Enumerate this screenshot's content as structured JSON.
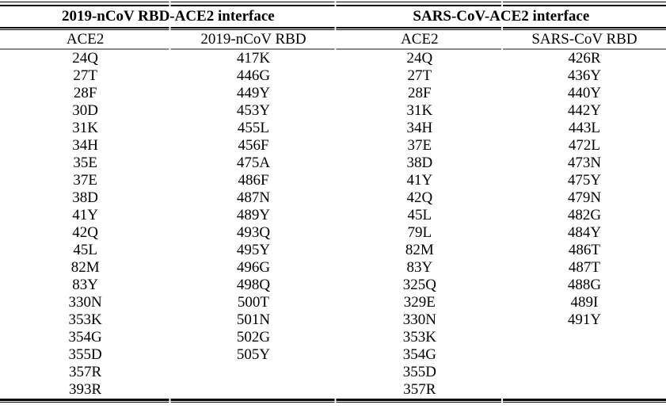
{
  "table": {
    "groups": [
      {
        "title": "2019-nCoV RBD-ACE2 interface",
        "columns": [
          "ACE2",
          "2019-nCoV RBD"
        ]
      },
      {
        "title": "SARS-CoV-ACE2 interface",
        "columns": [
          "ACE2",
          "SARS-CoV RBD"
        ]
      }
    ],
    "rows": [
      [
        "24Q",
        "417K",
        "24Q",
        "426R"
      ],
      [
        "27T",
        "446G",
        "27T",
        "436Y"
      ],
      [
        "28F",
        "449Y",
        "28F",
        "440Y"
      ],
      [
        "30D",
        "453Y",
        "31K",
        "442Y"
      ],
      [
        "31K",
        "455L",
        "34H",
        "443L"
      ],
      [
        "34H",
        "456F",
        "37E",
        "472L"
      ],
      [
        "35E",
        "475A",
        "38D",
        "473N"
      ],
      [
        "37E",
        "486F",
        "41Y",
        "475Y"
      ],
      [
        "38D",
        "487N",
        "42Q",
        "479N"
      ],
      [
        "41Y",
        "489Y",
        "45L",
        "482G"
      ],
      [
        "42Q",
        "493Q",
        "79L",
        "484Y"
      ],
      [
        "45L",
        "495Y",
        "82M",
        "486T"
      ],
      [
        "82M",
        "496G",
        "83Y",
        "487T"
      ],
      [
        "83Y",
        "498Q",
        "325Q",
        "488G"
      ],
      [
        "330N",
        "500T",
        "329E",
        "489I"
      ],
      [
        "353K",
        "501N",
        "330N",
        "491Y"
      ],
      [
        "354G",
        "502G",
        "353K",
        ""
      ],
      [
        "355D",
        "505Y",
        "354G",
        ""
      ],
      [
        "357R",
        "",
        "355D",
        ""
      ],
      [
        "393R",
        "",
        "357R",
        ""
      ]
    ]
  },
  "colors": {
    "text": "#000000",
    "rule_black": "#000000",
    "rule_gray": "#8a8a8a",
    "background": "#ffffff"
  }
}
